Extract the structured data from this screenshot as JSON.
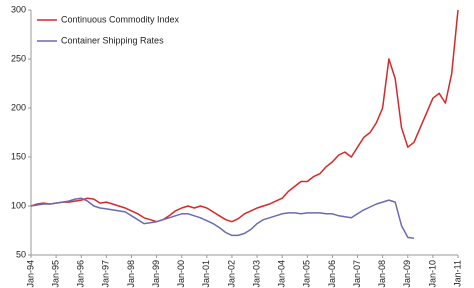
{
  "chart_data": {
    "type": "line",
    "categories": [
      "Jan-94",
      null,
      null,
      null,
      "Jan-95",
      null,
      null,
      null,
      "Jan-96",
      null,
      null,
      null,
      "Jan-97",
      null,
      null,
      null,
      "Jan-98",
      null,
      null,
      null,
      "Jan-99",
      null,
      null,
      null,
      "Jan-00",
      null,
      null,
      null,
      "Jan-01",
      null,
      null,
      null,
      "Jan-02",
      null,
      null,
      null,
      "Jan-03",
      null,
      null,
      null,
      "Jan-04",
      null,
      null,
      null,
      "Jan-05",
      null,
      null,
      null,
      "Jan-06",
      null,
      null,
      null,
      "Jan-07",
      null,
      null,
      null,
      "Jan-08",
      null,
      null,
      null,
      "Jan-09",
      null,
      null,
      null,
      "Jan-10",
      null,
      null,
      null,
      "Jan-11"
    ],
    "series": [
      {
        "name": "Continuous Commodity Index",
        "color": "#d42a2a",
        "values": [
          100,
          102,
          103,
          102,
          103,
          104,
          104,
          105,
          106,
          108,
          107,
          103,
          104,
          102,
          100,
          98,
          95,
          92,
          88,
          86,
          84,
          86,
          90,
          95,
          98,
          100,
          98,
          100,
          98,
          94,
          90,
          86,
          84,
          87,
          92,
          95,
          98,
          100,
          102,
          105,
          108,
          115,
          120,
          125,
          125,
          130,
          133,
          140,
          145,
          152,
          155,
          150,
          160,
          170,
          175,
          185,
          200,
          250,
          230,
          180,
          160,
          165,
          180,
          195,
          210,
          215,
          205,
          235,
          300
        ]
      },
      {
        "name": "Container Shipping Rates",
        "color": "#6b6bb3",
        "values": [
          100,
          101,
          102,
          102,
          103,
          104,
          105,
          107,
          108,
          105,
          100,
          98,
          97,
          96,
          95,
          94,
          90,
          86,
          82,
          83,
          84,
          86,
          88,
          90,
          92,
          92,
          90,
          88,
          85,
          82,
          78,
          73,
          70,
          70,
          72,
          76,
          82,
          86,
          88,
          90,
          92,
          93,
          93,
          92,
          93,
          93,
          93,
          92,
          92,
          90,
          89,
          88,
          92,
          96,
          99,
          102,
          104,
          106,
          104,
          80,
          68,
          67,
          null,
          null,
          null,
          null,
          null,
          null,
          null
        ]
      }
    ],
    "ylim": [
      50,
      300
    ],
    "yticks": [
      50,
      100,
      150,
      200,
      250,
      300
    ],
    "grid": false,
    "legend": "upper left"
  }
}
